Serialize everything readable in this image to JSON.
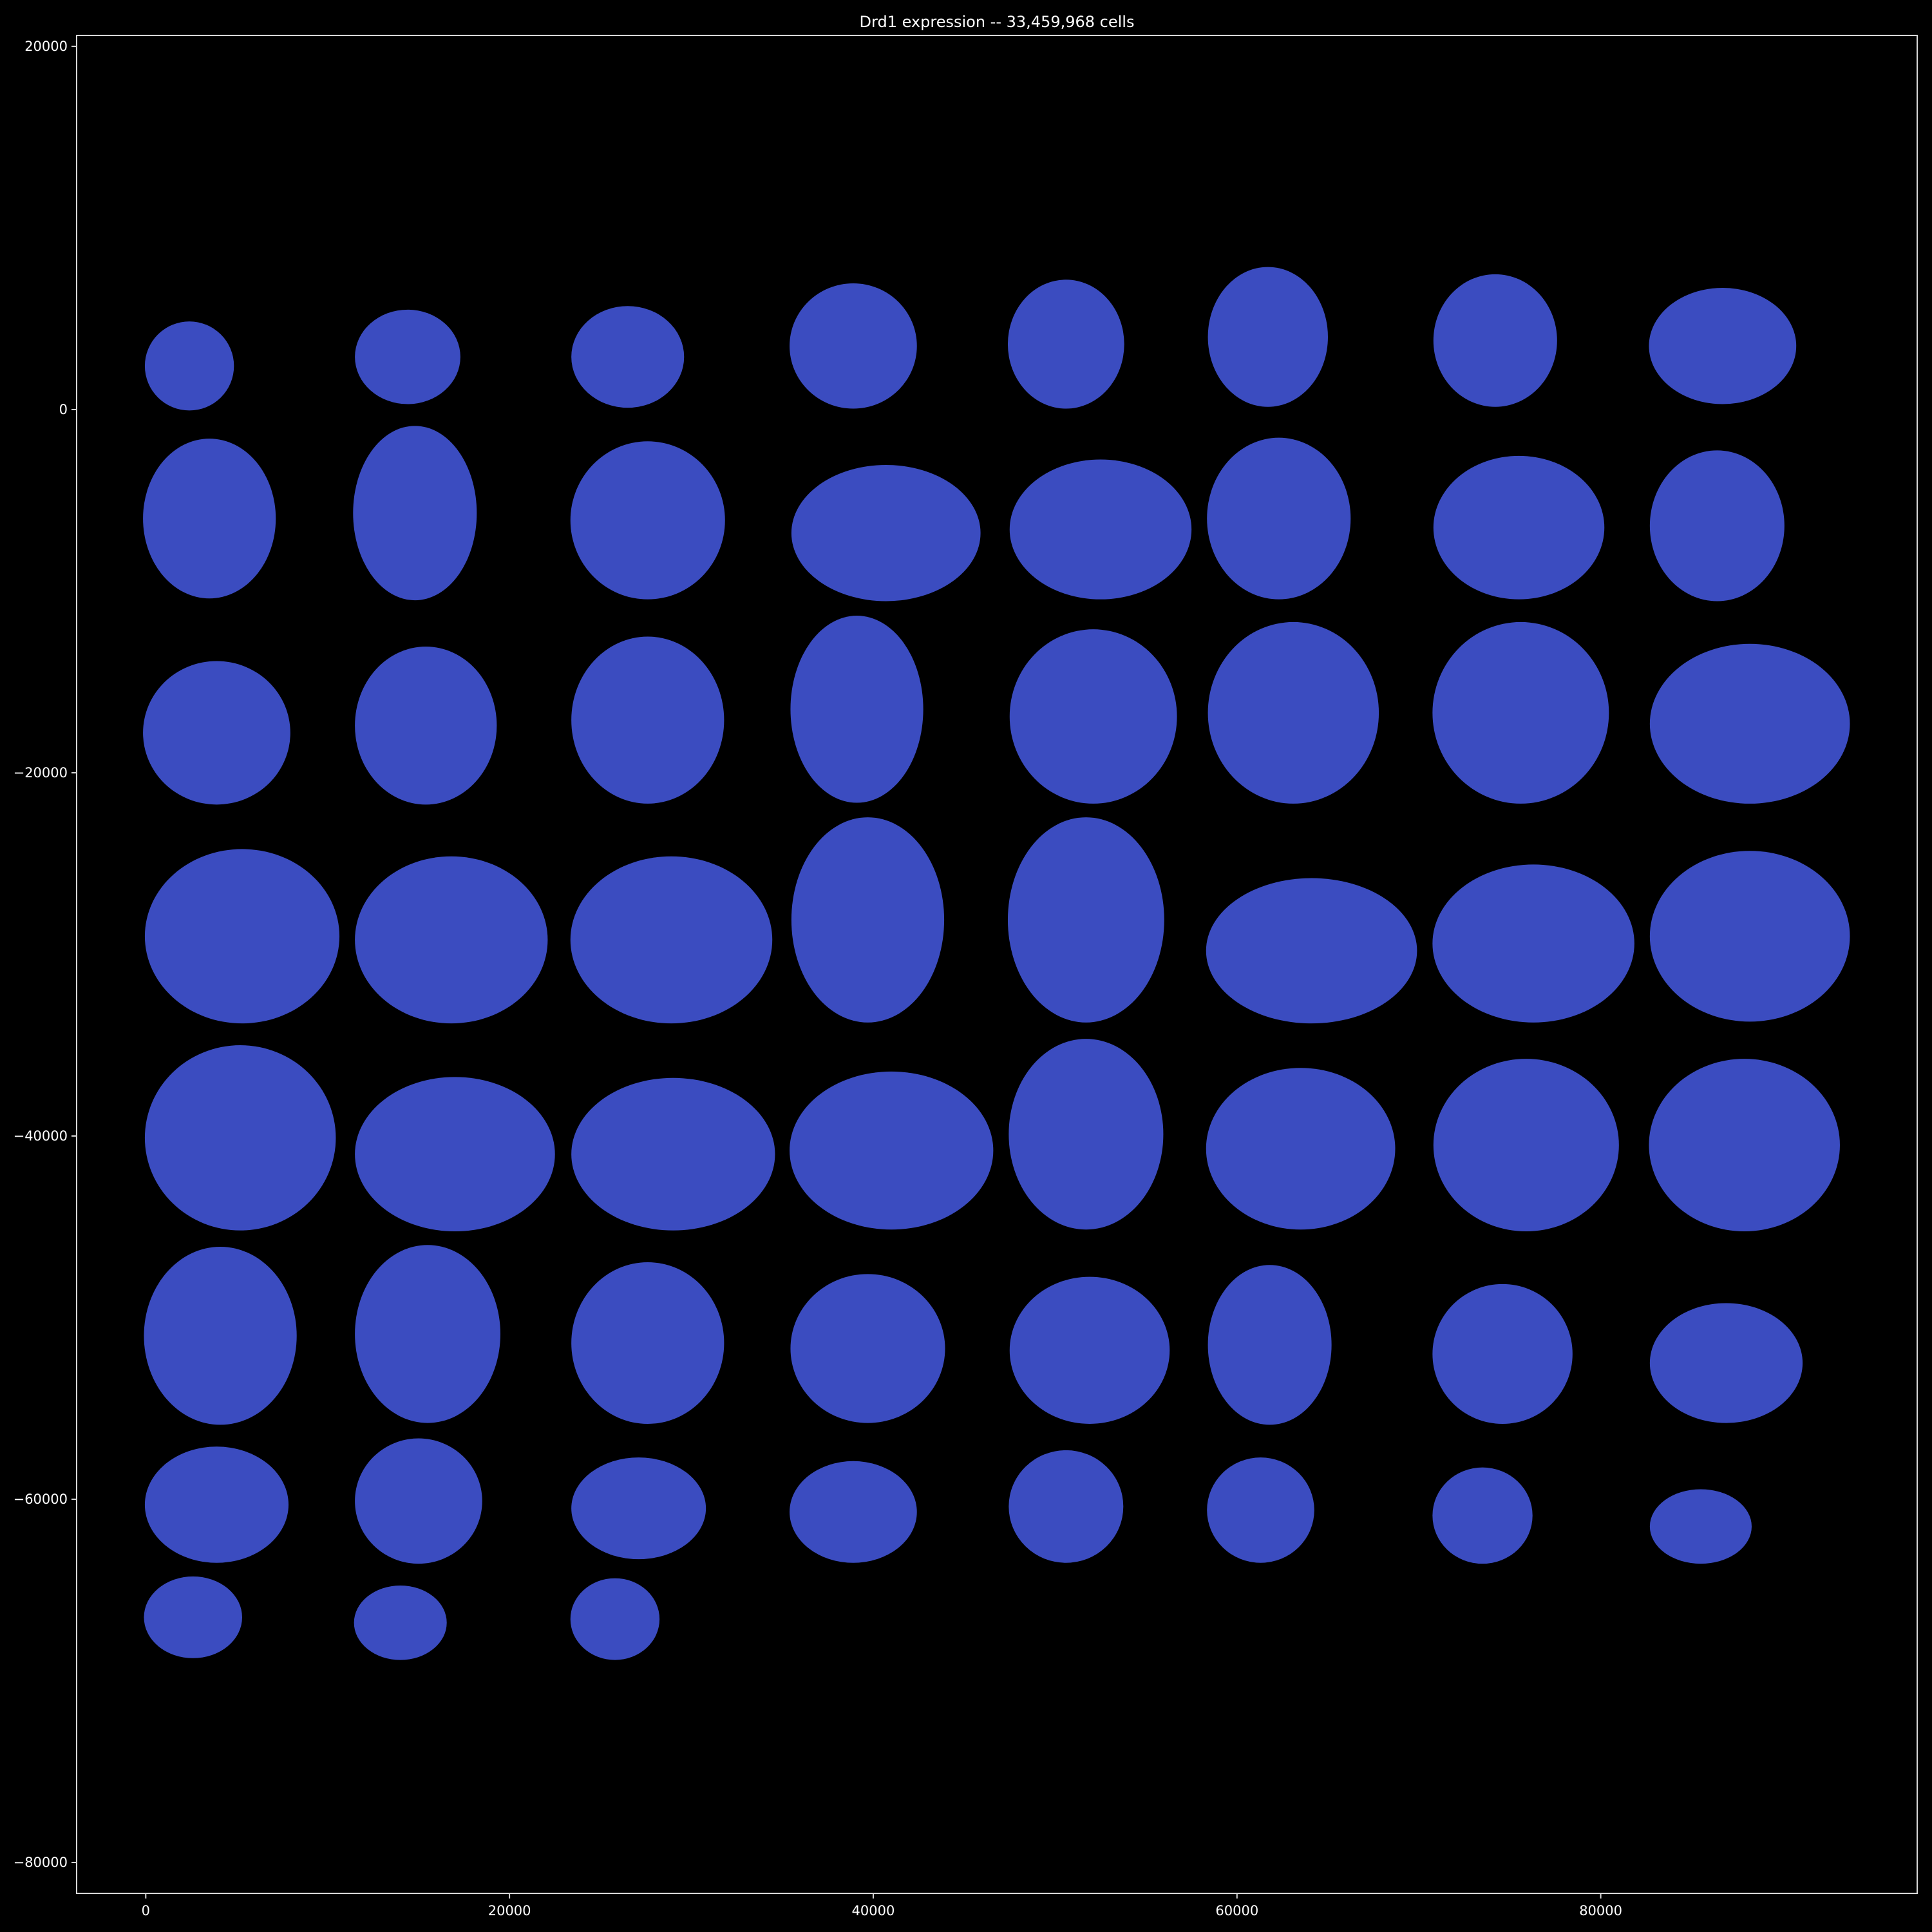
{
  "chart_data": {
    "type": "scatter",
    "title": "Drd1 expression -- 33,459,968 cells",
    "xlabel": "",
    "ylabel": "",
    "xlim": [
      -3800,
      97400
    ],
    "ylim": [
      -81700,
      20600
    ],
    "x_ticks": [
      0,
      20000,
      40000,
      60000,
      80000
    ],
    "x_tick_labels": [
      "0",
      "20000",
      "40000",
      "60000",
      "80000"
    ],
    "y_ticks": [
      20000,
      0,
      -20000,
      -40000,
      -60000,
      -80000
    ],
    "y_tick_labels": [
      "20000",
      "0",
      "−20000",
      "−40000",
      "−60000",
      "−80000"
    ],
    "grid": false,
    "legend": "none",
    "background_color": "#000000",
    "axis_color": "#d8d8d8",
    "point_color": "#3b4cc0",
    "section_fields": [
      "center_x",
      "center_y",
      "width",
      "height"
    ],
    "sections": [
      [
        2400,
        2400,
        4900,
        4900
      ],
      [
        14400,
        2900,
        5800,
        5200
      ],
      [
        26500,
        2900,
        6200,
        5600
      ],
      [
        38900,
        3500,
        7000,
        6900
      ],
      [
        50600,
        3600,
        6400,
        7100
      ],
      [
        61700,
        4000,
        6600,
        7700
      ],
      [
        74200,
        3800,
        6800,
        7300
      ],
      [
        86700,
        3500,
        8100,
        6400
      ],
      [
        3500,
        -6000,
        7300,
        8800
      ],
      [
        14800,
        -5700,
        6800,
        9600
      ],
      [
        27600,
        -6100,
        8500,
        8700
      ],
      [
        40700,
        -6800,
        10400,
        7500
      ],
      [
        52500,
        -6600,
        10000,
        7700
      ],
      [
        62300,
        -6000,
        7900,
        8900
      ],
      [
        75500,
        -6500,
        9400,
        7900
      ],
      [
        86400,
        -6400,
        7400,
        8300
      ],
      [
        3900,
        -17800,
        8100,
        7900
      ],
      [
        15400,
        -17400,
        7800,
        8700
      ],
      [
        27600,
        -17100,
        8400,
        9200
      ],
      [
        39100,
        -16500,
        7300,
        10300
      ],
      [
        52100,
        -16900,
        9200,
        9600
      ],
      [
        63100,
        -16700,
        9400,
        10000
      ],
      [
        75600,
        -16700,
        9700,
        10000
      ],
      [
        88200,
        -17300,
        11000,
        8800
      ],
      [
        5300,
        -29000,
        10700,
        9600
      ],
      [
        16800,
        -29200,
        10600,
        9200
      ],
      [
        28900,
        -29200,
        11100,
        9200
      ],
      [
        39700,
        -28100,
        8400,
        11300
      ],
      [
        51700,
        -28100,
        8600,
        11300
      ],
      [
        64100,
        -29800,
        11600,
        8000
      ],
      [
        76300,
        -29400,
        11100,
        8700
      ],
      [
        88200,
        -29000,
        11000,
        9400
      ],
      [
        5200,
        -40100,
        10500,
        10200
      ],
      [
        17000,
        -41000,
        11000,
        8500
      ],
      [
        29000,
        -41000,
        11200,
        8400
      ],
      [
        41000,
        -40800,
        11200,
        8700
      ],
      [
        51700,
        -39900,
        8500,
        10500
      ],
      [
        63500,
        -40700,
        10400,
        8900
      ],
      [
        75900,
        -40500,
        10200,
        9500
      ],
      [
        87900,
        -40500,
        10500,
        9500
      ],
      [
        4100,
        -51000,
        8400,
        9800
      ],
      [
        15500,
        -50900,
        8000,
        9800
      ],
      [
        27600,
        -51400,
        8400,
        8900
      ],
      [
        39700,
        -51700,
        8500,
        8200
      ],
      [
        51900,
        -51800,
        8800,
        8100
      ],
      [
        61800,
        -51500,
        6800,
        8800
      ],
      [
        74600,
        -52000,
        7700,
        7700
      ],
      [
        86900,
        -52500,
        8400,
        6600
      ],
      [
        3900,
        -60300,
        7900,
        6400
      ],
      [
        15000,
        -60100,
        7000,
        6900
      ],
      [
        27100,
        -60500,
        7400,
        5600
      ],
      [
        38900,
        -60700,
        7000,
        5600
      ],
      [
        50600,
        -60400,
        6300,
        6200
      ],
      [
        61300,
        -60600,
        5900,
        5800
      ],
      [
        73500,
        -60900,
        5500,
        5300
      ],
      [
        85500,
        -61500,
        5600,
        4100
      ],
      [
        2600,
        -66500,
        5400,
        4500
      ],
      [
        14000,
        -66800,
        5100,
        4100
      ],
      [
        25800,
        -66600,
        4900,
        4500
      ]
    ]
  }
}
